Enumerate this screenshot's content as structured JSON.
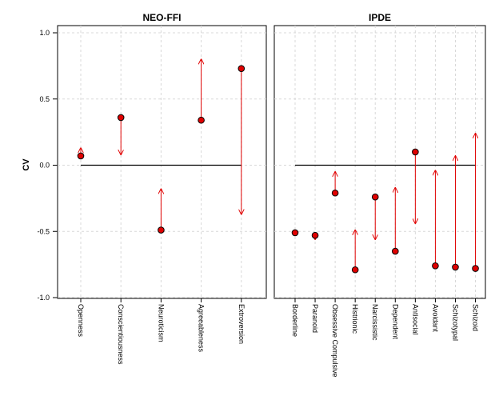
{
  "chart_data": {
    "type": "scatter",
    "ylabel": "CV",
    "ylim": [
      -1.0,
      1.0
    ],
    "yticks": [
      "1.0",
      "0.5",
      "0.0",
      "-0.5",
      "-1.0"
    ],
    "ytick_values": [
      1.0,
      0.5,
      0.0,
      -0.5,
      -1.0
    ],
    "grid": true,
    "reference_line": 0.0,
    "colors": {
      "point": "#e00000",
      "arrow": "#e00000",
      "reference": "#000000",
      "grid": "#d8d8d8"
    },
    "panels": [
      {
        "title": "NEO-FFI",
        "categories": [
          "Openness",
          "Conscientiousness",
          "Neuroticism",
          "Agreeableness",
          "Extroversion"
        ],
        "values": [
          0.07,
          0.36,
          -0.49,
          0.34,
          0.73
        ],
        "arrow_ends": [
          0.13,
          0.08,
          -0.18,
          0.8,
          -0.37
        ]
      },
      {
        "title": "IPDE",
        "categories": [
          "Borderline",
          "Paranoid",
          "Obsessive Compulsive",
          "Histrionic",
          "Narcissistic",
          "Dependent",
          "Antisocial",
          "Avoidant",
          "Schizotypal",
          "Schizoid"
        ],
        "values": [
          -0.51,
          -0.53,
          -0.21,
          -0.79,
          -0.24,
          -0.65,
          0.1,
          -0.76,
          -0.77,
          -0.78
        ],
        "arrow_ends": [
          -0.51,
          -0.56,
          -0.05,
          -0.49,
          -0.56,
          -0.17,
          -0.44,
          -0.04,
          0.07,
          0.24
        ]
      }
    ]
  }
}
